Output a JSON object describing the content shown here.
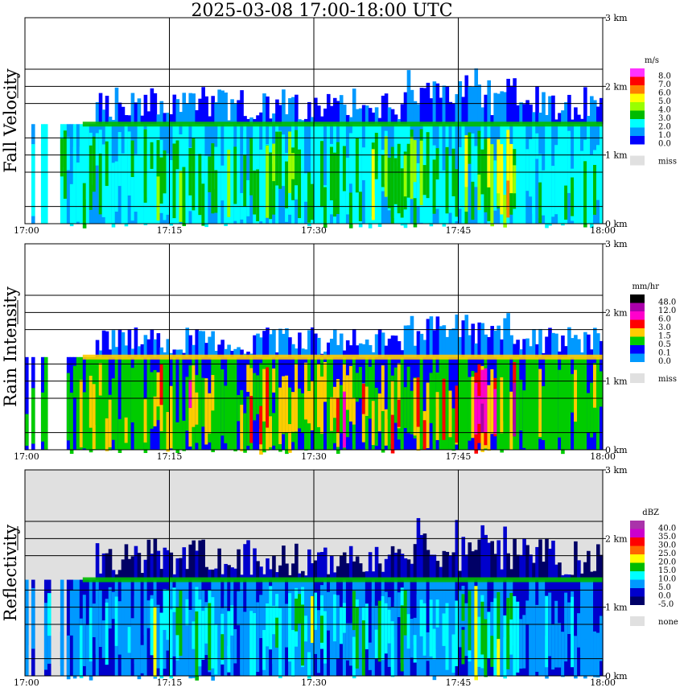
{
  "title": "2025-03-08   17:00-18:00 UTC",
  "chart_data": [
    {
      "type": "heatmap",
      "ylabel": "Fall Velocity",
      "unit": "m/s",
      "x_ticks": [
        "17:00",
        "17:15",
        "17:30",
        "17:45",
        "18:00"
      ],
      "y_ticks": [
        "0 km",
        "1 km",
        "2 km",
        "3 km"
      ],
      "ylim_km": [
        0,
        3
      ],
      "legend": [
        {
          "label": "8.0",
          "color": "#ff33ff"
        },
        {
          "label": "7.0",
          "color": "#ff0000"
        },
        {
          "label": "6.0",
          "color": "#ff8000"
        },
        {
          "label": "5.0",
          "color": "#ffff00"
        },
        {
          "label": "4.0",
          "color": "#99ff00"
        },
        {
          "label": "3.0",
          "color": "#00bb00"
        },
        {
          "label": "2.0",
          "color": "#00ffff"
        },
        {
          "label": "1.0",
          "color": "#0099ff"
        },
        {
          "label": "0.0",
          "color": "#0000ff"
        },
        {
          "label": "miss",
          "color": "#e0e0e0"
        }
      ],
      "melting_layer_km": 1.45,
      "echo_top_km": 2.0,
      "background_missing": false
    },
    {
      "type": "heatmap",
      "ylabel": "Rain Intensity",
      "unit": "mm/hr",
      "x_ticks": [
        "17:00",
        "17:15",
        "17:30",
        "17:45",
        "18:00"
      ],
      "y_ticks": [
        "0 km",
        "1 km",
        "2 km",
        "3 km"
      ],
      "ylim_km": [
        0,
        3
      ],
      "legend": [
        {
          "label": "48.0",
          "color": "#000000"
        },
        {
          "label": "12.0",
          "color": "#aa00aa"
        },
        {
          "label": "6.0",
          "color": "#ff00cc"
        },
        {
          "label": "3.0",
          "color": "#ff0000"
        },
        {
          "label": "1.5",
          "color": "#ffcc00"
        },
        {
          "label": "0.5",
          "color": "#00cc00"
        },
        {
          "label": "0.1",
          "color": "#0000ff"
        },
        {
          "label": "0.0",
          "color": "#0099ff"
        },
        {
          "label": "miss",
          "color": "#e0e0e0"
        }
      ],
      "melting_layer_km": 1.35,
      "echo_top_km": 1.8,
      "background_missing": false
    },
    {
      "type": "heatmap",
      "ylabel": "Reflectivity",
      "unit": "dBZ",
      "x_ticks": [
        "17:00",
        "17:15",
        "17:30",
        "17:45",
        "18:00"
      ],
      "y_ticks": [
        "0 km",
        "1 km",
        "2 km",
        "3 km"
      ],
      "ylim_km": [
        0,
        3
      ],
      "legend": [
        {
          "label": "40.0",
          "color": "#aa33aa"
        },
        {
          "label": "35.0",
          "color": "#cc00cc"
        },
        {
          "label": "30.0",
          "color": "#ff0000"
        },
        {
          "label": "25.0",
          "color": "#ff6600"
        },
        {
          "label": "20.0",
          "color": "#ffff00"
        },
        {
          "label": "15.0",
          "color": "#00bb00"
        },
        {
          "label": "10.0",
          "color": "#00ffff"
        },
        {
          "label": "5.0",
          "color": "#0099ff"
        },
        {
          "label": "0.0",
          "color": "#0000cc"
        },
        {
          "label": "-5.0",
          "color": "#000066"
        },
        {
          "label": "none",
          "color": "#e0e0e0"
        }
      ],
      "melting_layer_km": 1.4,
      "echo_top_km": 2.0,
      "background_missing": true
    }
  ]
}
